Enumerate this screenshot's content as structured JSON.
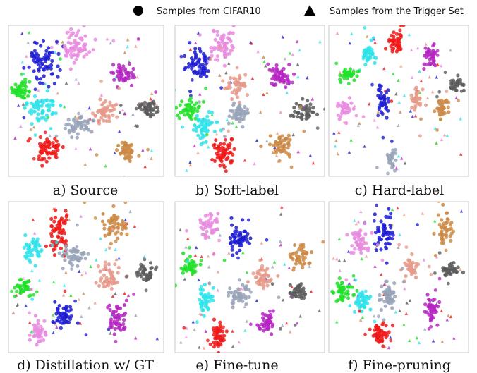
{
  "legend": {
    "circle_label": "Samples from CIFAR10",
    "triangle_label": "Samples from the Trigger Set"
  },
  "colors": {
    "blue": "#1f1fd2",
    "pink": "#e98be0",
    "magenta": "#b526c2",
    "green": "#22e02a",
    "cyan": "#2fe3ea",
    "gray": "#98a3b8",
    "salmon": "#e69a8a",
    "darkgray": "#5c5c5c",
    "red": "#ee1a1a",
    "orange": "#cd8a45"
  },
  "chart_data": [
    {
      "type": "scatter",
      "caption": "a) Source",
      "clusters": [
        {
          "color": "blue",
          "cx": 0.22,
          "cy": 0.22,
          "rx": 0.09,
          "ry": 0.13,
          "n": 70
        },
        {
          "color": "pink",
          "cx": 0.44,
          "cy": 0.14,
          "rx": 0.08,
          "ry": 0.1,
          "n": 65
        },
        {
          "color": "magenta",
          "cx": 0.74,
          "cy": 0.33,
          "rx": 0.06,
          "ry": 0.07,
          "n": 50
        },
        {
          "color": "green",
          "cx": 0.08,
          "cy": 0.43,
          "rx": 0.06,
          "ry": 0.05,
          "n": 45
        },
        {
          "color": "cyan",
          "cx": 0.22,
          "cy": 0.55,
          "rx": 0.1,
          "ry": 0.09,
          "n": 60
        },
        {
          "color": "gray",
          "cx": 0.45,
          "cy": 0.66,
          "rx": 0.07,
          "ry": 0.06,
          "n": 45
        },
        {
          "color": "salmon",
          "cx": 0.63,
          "cy": 0.57,
          "rx": 0.06,
          "ry": 0.07,
          "n": 50
        },
        {
          "color": "darkgray",
          "cx": 0.9,
          "cy": 0.55,
          "rx": 0.06,
          "ry": 0.04,
          "n": 40
        },
        {
          "color": "red",
          "cx": 0.26,
          "cy": 0.82,
          "rx": 0.08,
          "ry": 0.08,
          "n": 60
        },
        {
          "color": "orange",
          "cx": 0.75,
          "cy": 0.83,
          "rx": 0.06,
          "ry": 0.06,
          "n": 45
        }
      ]
    },
    {
      "type": "scatter",
      "caption": "b) Soft-label",
      "clusters": [
        {
          "color": "pink",
          "cx": 0.32,
          "cy": 0.13,
          "rx": 0.06,
          "ry": 0.1,
          "n": 55
        },
        {
          "color": "blue",
          "cx": 0.16,
          "cy": 0.26,
          "rx": 0.08,
          "ry": 0.1,
          "n": 60
        },
        {
          "color": "salmon",
          "cx": 0.41,
          "cy": 0.4,
          "rx": 0.07,
          "ry": 0.07,
          "n": 45
        },
        {
          "color": "magenta",
          "cx": 0.71,
          "cy": 0.35,
          "rx": 0.07,
          "ry": 0.06,
          "n": 55
        },
        {
          "color": "green",
          "cx": 0.1,
          "cy": 0.55,
          "rx": 0.07,
          "ry": 0.06,
          "n": 45
        },
        {
          "color": "cyan",
          "cx": 0.18,
          "cy": 0.68,
          "rx": 0.07,
          "ry": 0.09,
          "n": 50
        },
        {
          "color": "gray",
          "cx": 0.43,
          "cy": 0.58,
          "rx": 0.06,
          "ry": 0.06,
          "n": 45
        },
        {
          "color": "darkgray",
          "cx": 0.86,
          "cy": 0.57,
          "rx": 0.07,
          "ry": 0.05,
          "n": 40
        },
        {
          "color": "red",
          "cx": 0.33,
          "cy": 0.85,
          "rx": 0.07,
          "ry": 0.08,
          "n": 60
        },
        {
          "color": "orange",
          "cx": 0.71,
          "cy": 0.8,
          "rx": 0.06,
          "ry": 0.07,
          "n": 50
        }
      ]
    },
    {
      "type": "scatter",
      "caption": "c) Hard-label",
      "clusters": [
        {
          "color": "red",
          "cx": 0.48,
          "cy": 0.1,
          "rx": 0.05,
          "ry": 0.09,
          "n": 45
        },
        {
          "color": "magenta",
          "cx": 0.73,
          "cy": 0.22,
          "rx": 0.04,
          "ry": 0.07,
          "n": 35
        },
        {
          "color": "cyan",
          "cx": 0.29,
          "cy": 0.18,
          "rx": 0.04,
          "ry": 0.07,
          "n": 35
        },
        {
          "color": "green",
          "cx": 0.14,
          "cy": 0.32,
          "rx": 0.06,
          "ry": 0.04,
          "n": 35
        },
        {
          "color": "darkgray",
          "cx": 0.91,
          "cy": 0.4,
          "rx": 0.05,
          "ry": 0.05,
          "n": 30
        },
        {
          "color": "blue",
          "cx": 0.38,
          "cy": 0.5,
          "rx": 0.04,
          "ry": 0.08,
          "n": 40
        },
        {
          "color": "salmon",
          "cx": 0.63,
          "cy": 0.48,
          "rx": 0.04,
          "ry": 0.06,
          "n": 30
        },
        {
          "color": "orange",
          "cx": 0.81,
          "cy": 0.55,
          "rx": 0.05,
          "ry": 0.06,
          "n": 35
        },
        {
          "color": "pink",
          "cx": 0.11,
          "cy": 0.55,
          "rx": 0.05,
          "ry": 0.06,
          "n": 35
        },
        {
          "color": "gray",
          "cx": 0.45,
          "cy": 0.88,
          "rx": 0.03,
          "ry": 0.06,
          "n": 25
        }
      ]
    },
    {
      "type": "scatter",
      "caption": "d) Distillation w/ GT",
      "clusters": [
        {
          "color": "red",
          "cx": 0.33,
          "cy": 0.2,
          "rx": 0.06,
          "ry": 0.14,
          "n": 65
        },
        {
          "color": "orange",
          "cx": 0.69,
          "cy": 0.17,
          "rx": 0.07,
          "ry": 0.08,
          "n": 50
        },
        {
          "color": "cyan",
          "cx": 0.15,
          "cy": 0.31,
          "rx": 0.07,
          "ry": 0.08,
          "n": 45
        },
        {
          "color": "gray",
          "cx": 0.43,
          "cy": 0.36,
          "rx": 0.07,
          "ry": 0.06,
          "n": 45
        },
        {
          "color": "salmon",
          "cx": 0.64,
          "cy": 0.5,
          "rx": 0.06,
          "ry": 0.07,
          "n": 45
        },
        {
          "color": "darkgray",
          "cx": 0.89,
          "cy": 0.47,
          "rx": 0.06,
          "ry": 0.05,
          "n": 40
        },
        {
          "color": "green",
          "cx": 0.1,
          "cy": 0.57,
          "rx": 0.05,
          "ry": 0.06,
          "n": 40
        },
        {
          "color": "blue",
          "cx": 0.36,
          "cy": 0.76,
          "rx": 0.06,
          "ry": 0.07,
          "n": 50
        },
        {
          "color": "pink",
          "cx": 0.19,
          "cy": 0.87,
          "rx": 0.05,
          "ry": 0.07,
          "n": 40
        },
        {
          "color": "magenta",
          "cx": 0.7,
          "cy": 0.78,
          "rx": 0.05,
          "ry": 0.1,
          "n": 50
        }
      ]
    },
    {
      "type": "scatter",
      "caption": "e) Fine-tune",
      "clusters": [
        {
          "color": "pink",
          "cx": 0.24,
          "cy": 0.16,
          "rx": 0.06,
          "ry": 0.08,
          "n": 45
        },
        {
          "color": "blue",
          "cx": 0.42,
          "cy": 0.24,
          "rx": 0.07,
          "ry": 0.08,
          "n": 55
        },
        {
          "color": "orange",
          "cx": 0.83,
          "cy": 0.36,
          "rx": 0.06,
          "ry": 0.07,
          "n": 40
        },
        {
          "color": "green",
          "cx": 0.1,
          "cy": 0.43,
          "rx": 0.06,
          "ry": 0.05,
          "n": 40
        },
        {
          "color": "salmon",
          "cx": 0.58,
          "cy": 0.5,
          "rx": 0.06,
          "ry": 0.07,
          "n": 45
        },
        {
          "color": "gray",
          "cx": 0.43,
          "cy": 0.63,
          "rx": 0.07,
          "ry": 0.06,
          "n": 45
        },
        {
          "color": "darkgray",
          "cx": 0.82,
          "cy": 0.6,
          "rx": 0.05,
          "ry": 0.05,
          "n": 35
        },
        {
          "color": "cyan",
          "cx": 0.2,
          "cy": 0.66,
          "rx": 0.04,
          "ry": 0.09,
          "n": 40
        },
        {
          "color": "magenta",
          "cx": 0.62,
          "cy": 0.8,
          "rx": 0.05,
          "ry": 0.06,
          "n": 40
        },
        {
          "color": "red",
          "cx": 0.29,
          "cy": 0.9,
          "rx": 0.05,
          "ry": 0.08,
          "n": 50
        }
      ]
    },
    {
      "type": "scatter",
      "caption": "f) Fine-pruning",
      "clusters": [
        {
          "color": "blue",
          "cx": 0.4,
          "cy": 0.22,
          "rx": 0.06,
          "ry": 0.12,
          "n": 55
        },
        {
          "color": "pink",
          "cx": 0.22,
          "cy": 0.27,
          "rx": 0.06,
          "ry": 0.08,
          "n": 45
        },
        {
          "color": "orange",
          "cx": 0.83,
          "cy": 0.18,
          "rx": 0.05,
          "ry": 0.09,
          "n": 40
        },
        {
          "color": "salmon",
          "cx": 0.58,
          "cy": 0.43,
          "rx": 0.05,
          "ry": 0.06,
          "n": 35
        },
        {
          "color": "darkgray",
          "cx": 0.87,
          "cy": 0.45,
          "rx": 0.05,
          "ry": 0.04,
          "n": 35
        },
        {
          "color": "green",
          "cx": 0.09,
          "cy": 0.6,
          "rx": 0.06,
          "ry": 0.07,
          "n": 45
        },
        {
          "color": "cyan",
          "cx": 0.25,
          "cy": 0.66,
          "rx": 0.05,
          "ry": 0.07,
          "n": 40
        },
        {
          "color": "gray",
          "cx": 0.42,
          "cy": 0.62,
          "rx": 0.06,
          "ry": 0.07,
          "n": 45
        },
        {
          "color": "magenta",
          "cx": 0.74,
          "cy": 0.7,
          "rx": 0.04,
          "ry": 0.08,
          "n": 40
        },
        {
          "color": "red",
          "cx": 0.36,
          "cy": 0.88,
          "rx": 0.05,
          "ry": 0.08,
          "n": 50
        }
      ]
    }
  ]
}
